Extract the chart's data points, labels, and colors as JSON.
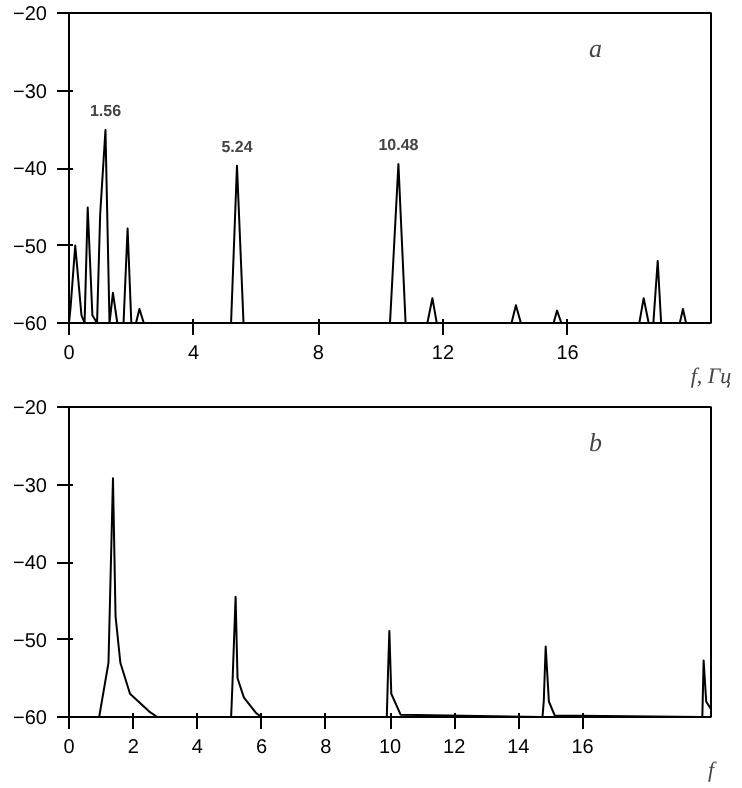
{
  "chart_data": [
    {
      "type": "line",
      "xlabel": "f, Гц",
      "x": [
        0,
        0.05,
        0.2,
        0.4,
        0.5,
        0.6,
        0.75,
        0.9,
        1.0,
        1.17,
        1.3,
        1.41,
        1.55,
        1.75,
        1.88,
        2.0,
        2.15,
        2.26,
        2.4,
        5.2,
        5.39,
        5.6,
        10.3,
        10.57,
        10.8,
        11.5,
        11.66,
        11.8,
        14.2,
        14.34,
        14.5,
        15.55,
        15.66,
        15.8,
        18.3,
        18.44,
        18.6,
        18.75,
        18.89,
        19.0,
        19.6,
        19.7,
        19.8,
        20.4
      ],
      "values": [
        -60,
        -58,
        -50,
        -59,
        -60,
        -45.1,
        -59,
        -60,
        -46,
        -35.1,
        -60,
        -56.1,
        -60,
        -60,
        -47.8,
        -60,
        -60,
        -58.2,
        -60,
        -60,
        -39.7,
        -60,
        -60,
        -39.5,
        -60,
        -60,
        -56.8,
        -60,
        -60,
        -57.7,
        -60,
        -60,
        -58.4,
        -60,
        -60,
        -56.8,
        -60,
        -60,
        -52,
        -60,
        -60,
        -58.2,
        -60,
        -60
      ],
      "color": "#000000",
      "xlim": [
        0,
        20.6
      ],
      "ylim": [
        -60,
        -20
      ],
      "xticks": [
        0,
        4,
        8,
        12,
        16
      ],
      "yticks": [
        -60,
        -50,
        -40,
        -30,
        -20
      ],
      "grid": false,
      "marker": "none",
      "line_style": "solid",
      "annotations": [
        {
          "text": "1.56",
          "x": 1.17,
          "y": -35.1
        },
        {
          "text": "5.24",
          "x": 5.39,
          "y": -39.7
        },
        {
          "text": "10.48",
          "x": 10.57,
          "y": -39.5
        },
        "a"
      ]
    },
    {
      "type": "line",
      "xlabel": "f",
      "x": [
        0,
        0.94,
        1.23,
        1.37,
        1.45,
        1.6,
        1.9,
        2.5,
        2.75,
        5.05,
        5.09,
        5.19,
        5.25,
        5.45,
        5.83,
        6.0,
        9.9,
        9.94,
        9.98,
        10.04,
        10.33,
        14.75,
        14.79,
        14.85,
        14.95,
        15.13,
        19.73,
        19.77,
        19.85,
        20.0
      ],
      "values": [
        -60,
        -60,
        -53,
        -29.2,
        -47,
        -53,
        -57,
        -59.3,
        -60,
        -60,
        -56,
        -44.5,
        -55,
        -57.5,
        -59.5,
        -60,
        -60,
        -54,
        -48.9,
        -57,
        -59.7,
        -60,
        -58,
        -50.9,
        -58,
        -59.8,
        -60,
        -52.7,
        -58,
        -59
      ],
      "color": "#000000",
      "xlim": [
        0,
        20
      ],
      "ylim": [
        -60,
        -20
      ],
      "xticks": [
        0,
        2,
        4,
        6,
        8,
        10,
        12,
        14,
        16
      ],
      "yticks": [
        -60,
        -50,
        -40,
        -30,
        -20
      ],
      "grid": false,
      "marker": "none",
      "line_style": "solid",
      "annotations": [
        "b"
      ]
    }
  ]
}
